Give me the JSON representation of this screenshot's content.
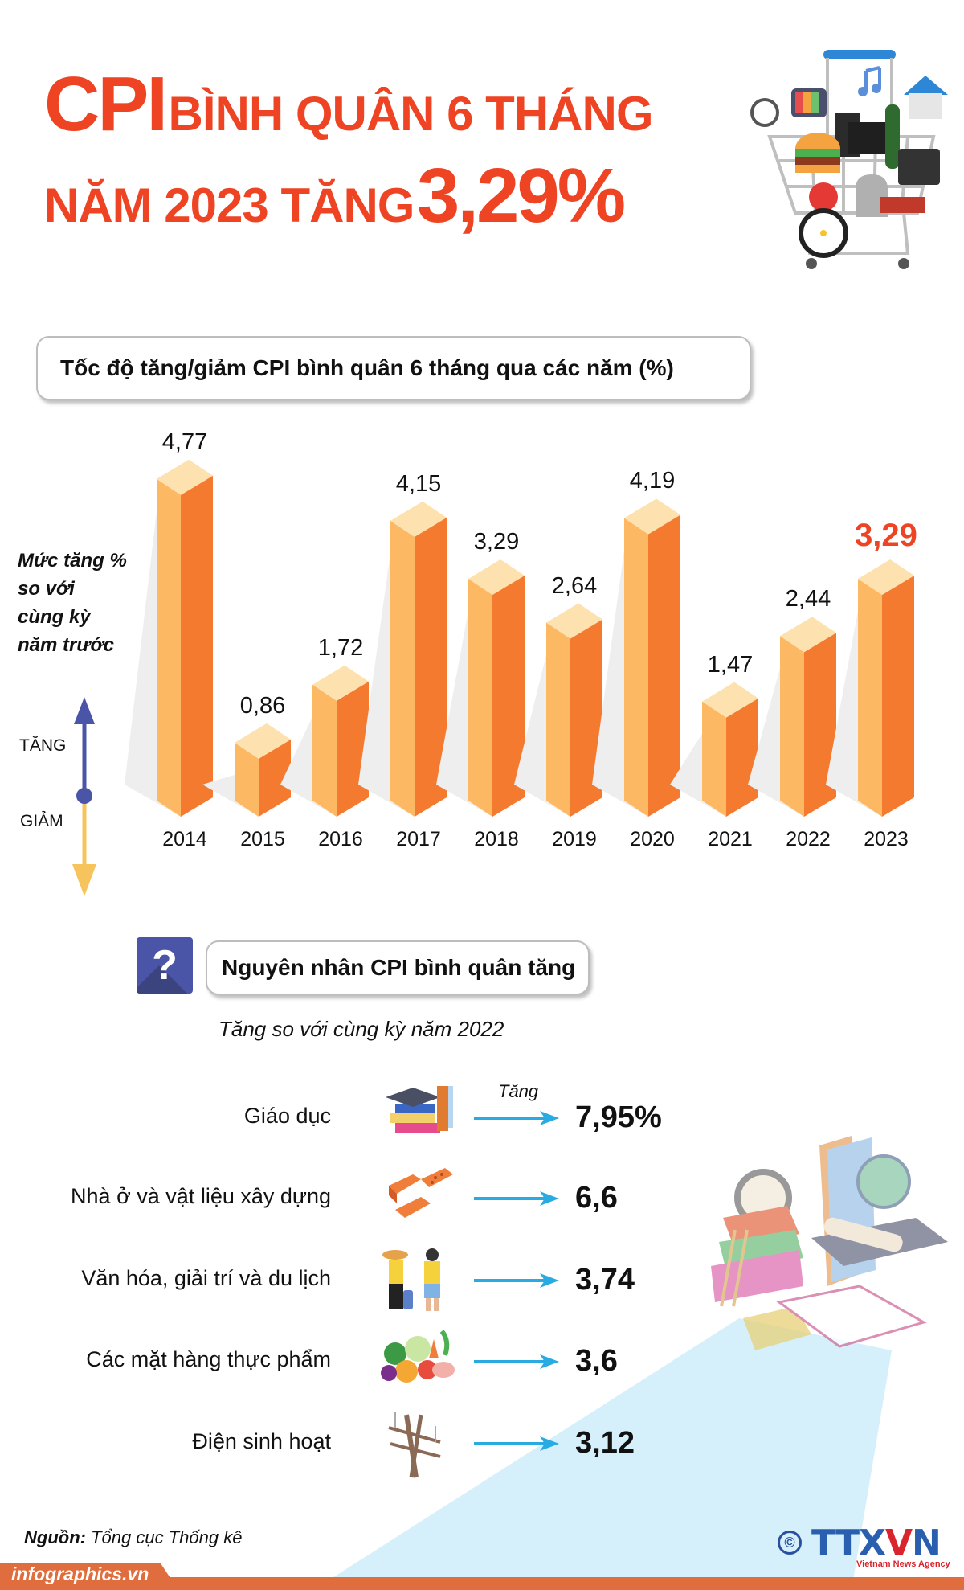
{
  "header": {
    "title_cpi": "CPI",
    "title_part1": "BÌNH QUÂN 6 THÁNG",
    "title_part2": "NĂM 2023 TĂNG",
    "title_value": "3,29%",
    "accent_color": "#ee4423"
  },
  "chart_section": {
    "title": "Tốc độ tăng/giảm CPI bình quân 6 tháng qua các năm (%)",
    "legend_lines": [
      "Mức tăng %",
      "so với",
      "cùng kỳ",
      "năm trước"
    ],
    "up_label": "TĂNG",
    "down_label": "GIẢM"
  },
  "chart_data": {
    "type": "bar",
    "title": "Tốc độ tăng/giảm CPI bình quân 6 tháng qua các năm (%)",
    "xlabel": "",
    "ylabel": "Mức tăng % so với cùng kỳ năm trước",
    "categories": [
      "2014",
      "2015",
      "2016",
      "2017",
      "2018",
      "2019",
      "2020",
      "2021",
      "2022",
      "2023"
    ],
    "values": [
      4.77,
      0.86,
      1.72,
      4.15,
      3.29,
      2.64,
      4.19,
      1.47,
      2.44,
      3.29
    ],
    "value_labels": [
      "4,77",
      "0,86",
      "1,72",
      "4,15",
      "3,29",
      "2,64",
      "4,19",
      "1,47",
      "2,44",
      "3,29"
    ],
    "highlight_index": 9,
    "grid": false,
    "ylim": [
      0,
      5
    ],
    "colors": {
      "left_face": "#fdb863",
      "right_face": "#f47a30",
      "top_face": "#fde2b0",
      "highlight_label": "#ee4423"
    }
  },
  "causes_section": {
    "title": "Nguyên nhân CPI bình quân tăng",
    "question_icon": "?",
    "subtitle": "Tăng so với cùng kỳ năm 2022",
    "arrow_label": "Tăng",
    "items": [
      {
        "label": "Giáo dục",
        "value": "7,95%",
        "icon": "education-books-icon"
      },
      {
        "label": "Nhà ở và vật liệu xây dựng",
        "value": "6,6",
        "icon": "bricks-icon"
      },
      {
        "label": "Văn hóa, giải trí và du lịch",
        "value": "3,74",
        "icon": "tourists-icon"
      },
      {
        "label": "Các mặt hàng thực phẩm",
        "value": "3,6",
        "icon": "vegetables-icon"
      },
      {
        "label": "Điện sinh hoạt",
        "value": "3,12",
        "icon": "power-pole-icon"
      }
    ]
  },
  "footer": {
    "source_label": "Nguồn:",
    "source_value": "Tổng cục Thống kê",
    "site": "infographics.vn",
    "copyright": "©",
    "brand_prefix": "TTX",
    "brand_v": "V",
    "brand_suffix": "N",
    "brand_tagline": "Vietnam News Agency"
  }
}
